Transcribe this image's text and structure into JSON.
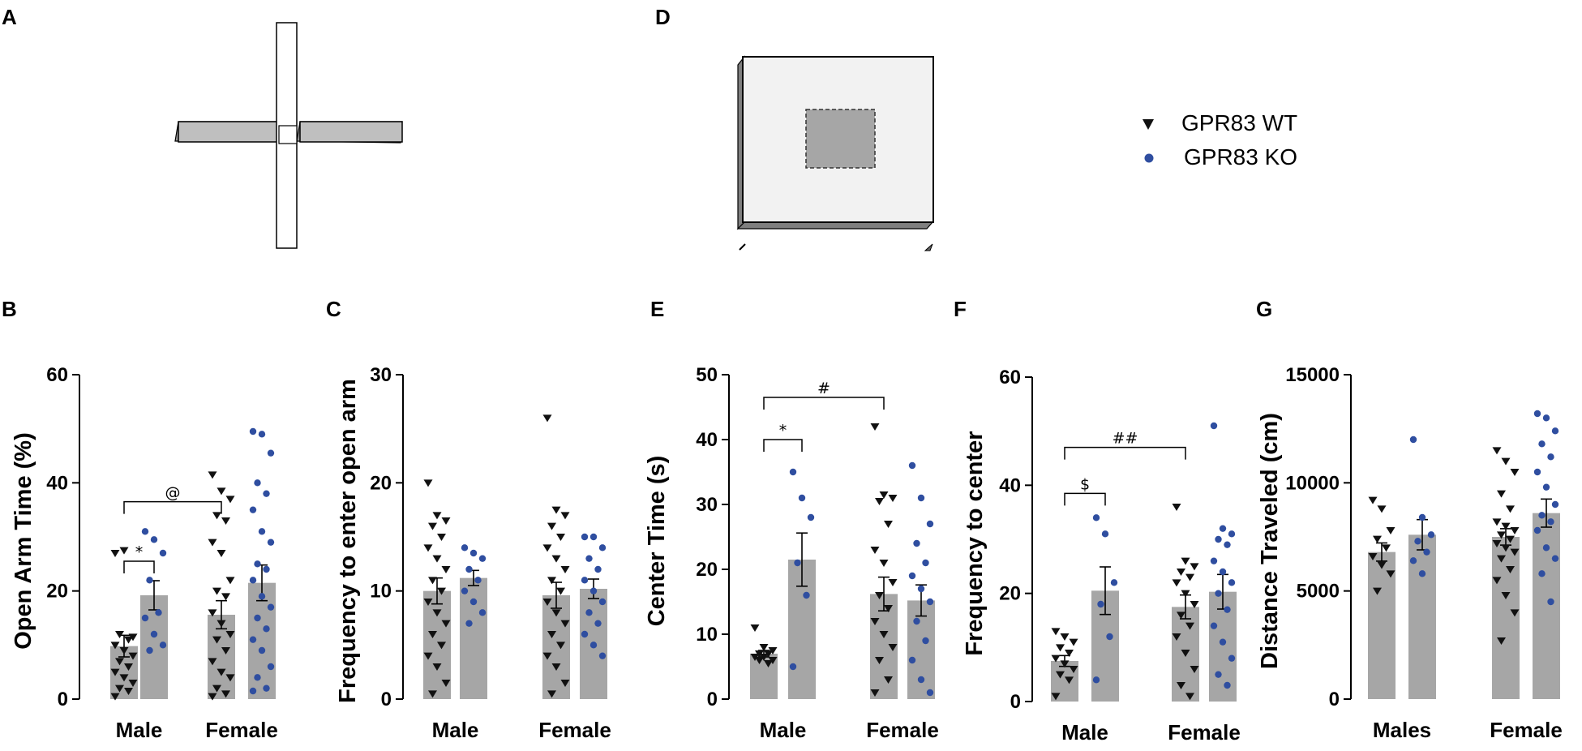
{
  "panel_labels": {
    "A": "A",
    "B": "B",
    "C": "C",
    "D": "D",
    "E": "E",
    "F": "F",
    "G": "G"
  },
  "legend": {
    "wt_label": "GPR83 WT",
    "ko_label": "GPR83 KO",
    "wt_color": "#111111",
    "ko_color": "#2f4ea0"
  },
  "colors": {
    "bar": "#a6a6a6",
    "axis": "#000000",
    "apparatus_fill": "#bfbfbf",
    "field_fill": "#f2f2f2",
    "center_fill": "#a6a6a6"
  },
  "chart_data": [
    {
      "id": "B",
      "type": "bar",
      "ylabel": "Open Arm Time (%)",
      "ylim": [
        0,
        60
      ],
      "yticks": [
        "0",
        "20",
        "40",
        "60"
      ],
      "groups": [
        "Male",
        "Female"
      ],
      "series": [
        {
          "name": "GPR83 WT",
          "means": [
            9.8,
            15.6
          ],
          "sem": [
            2.0,
            2.6
          ],
          "points": [
            [
              27,
              27.5,
              11.5,
              12,
              11,
              10,
              9,
              8,
              7,
              6,
              5,
              4,
              3,
              2,
              1.5,
              0.5
            ],
            [
              41.5,
              38.5,
              37,
              34,
              33,
              29,
              27,
              22,
              20,
              19,
              16,
              14,
              12,
              11,
              9,
              7,
              5,
              4,
              2,
              1,
              0.5
            ]
          ]
        },
        {
          "name": "GPR83 KO",
          "means": [
            19.2,
            21.5
          ],
          "sem": [
            2.7,
            3.3
          ],
          "points": [
            [
              31,
              29.5,
              27,
              22,
              16,
              15,
              12,
              10,
              9
            ],
            [
              49.5,
              49,
              45.5,
              40,
              38,
              35,
              31,
              29,
              25,
              24,
              22,
              19,
              17,
              15,
              13,
              11,
              9,
              6,
              4,
              2,
              1.5
            ]
          ]
        }
      ],
      "annotations": [
        {
          "text": "*",
          "between": "Male WT vs Male KO"
        },
        {
          "text": "@",
          "between": "Male WT vs Female WT"
        }
      ]
    },
    {
      "id": "C",
      "type": "bar",
      "ylabel": "Frequency to enter open arm",
      "ylim": [
        0,
        30
      ],
      "yticks": [
        "0",
        "10",
        "20",
        "30"
      ],
      "groups": [
        "Male",
        "Female"
      ],
      "series": [
        {
          "name": "GPR83 WT",
          "means": [
            10.0,
            9.6
          ],
          "sem": [
            1.2,
            1.2
          ],
          "points": [
            [
              20,
              17,
              16.5,
              16,
              15,
              14,
              13,
              12,
              11,
              10,
              9,
              8,
              7,
              6,
              5,
              4,
              3,
              1.5,
              0.5
            ],
            [
              26,
              17.5,
              17,
              16,
              15,
              14,
              13,
              12,
              11,
              10,
              9,
              8,
              7,
              6,
              5,
              4,
              3,
              1.5,
              0.5
            ]
          ]
        },
        {
          "name": "GPR83 KO",
          "means": [
            11.2,
            10.2
          ],
          "sem": [
            0.7,
            0.9
          ],
          "points": [
            [
              14,
              13.5,
              13,
              12,
              11,
              10,
              9,
              8,
              7
            ],
            [
              15,
              15,
              14,
              13,
              12,
              11,
              10,
              9,
              8,
              7,
              6,
              5,
              4
            ]
          ]
        }
      ],
      "annotations": []
    },
    {
      "id": "E",
      "type": "bar",
      "ylabel": "Center Time (s)",
      "ylim": [
        0,
        50
      ],
      "yticks": [
        "0",
        "10",
        "20",
        "30",
        "40",
        "50"
      ],
      "groups": [
        "Male",
        "Female"
      ],
      "series": [
        {
          "name": "GPR83 WT",
          "means": [
            7.0,
            16.2
          ],
          "sem": [
            0.5,
            2.6
          ],
          "points": [
            [
              11,
              8,
              7.5,
              7,
              7,
              6.5,
              6.5,
              6,
              6,
              5.5
            ],
            [
              42,
              31.5,
              31,
              30.5,
              27,
              23,
              21,
              18,
              16,
              14,
              12,
              10,
              8,
              6,
              3,
              1
            ]
          ]
        },
        {
          "name": "GPR83 KO",
          "means": [
            21.5,
            15.2
          ],
          "sem": [
            4.1,
            2.4
          ],
          "points": [
            [
              35,
              31,
              28,
              21,
              16,
              5
            ],
            [
              36,
              31,
              27,
              24,
              21,
              19,
              17,
              15,
              12,
              9,
              6,
              3,
              1
            ]
          ]
        }
      ],
      "annotations": [
        {
          "text": "*",
          "between": "Male WT vs Male KO"
        },
        {
          "text": "#",
          "between": "Male WT vs Female WT"
        }
      ]
    },
    {
      "id": "F",
      "type": "bar",
      "ylabel": "Frequency to center",
      "ylim": [
        0,
        60
      ],
      "yticks": [
        "0",
        "20",
        "40",
        "60"
      ],
      "groups": [
        "Male",
        "Female"
      ],
      "series": [
        {
          "name": "GPR83 WT",
          "means": [
            7.5,
            17.5
          ],
          "sem": [
            1.0,
            2.2
          ],
          "points": [
            [
              13,
              12,
              11,
              10,
              9,
              8,
              7,
              6,
              5,
              4,
              1
            ],
            [
              36,
              26,
              25,
              24,
              23,
              22,
              20,
              18,
              16,
              14,
              12,
              9,
              6,
              3,
              1
            ]
          ]
        },
        {
          "name": "GPR83 KO",
          "means": [
            20.5,
            20.3
          ],
          "sem": [
            4.4,
            3.2
          ],
          "points": [
            [
              34,
              31,
              22,
              18,
              12,
              4
            ],
            [
              51,
              32,
              31,
              30,
              29,
              26,
              24,
              22,
              20,
              17,
              14,
              11,
              8,
              5,
              3
            ]
          ]
        }
      ],
      "annotations": [
        {
          "text": "$",
          "between": "Male WT vs Male KO"
        },
        {
          "text": "##",
          "between": "Male WT vs Female WT"
        }
      ]
    },
    {
      "id": "G",
      "type": "bar",
      "ylabel": "Distance Traveled (cm)",
      "ylim": [
        0,
        15000
      ],
      "yticks": [
        "0",
        "5000",
        "10000",
        "15000"
      ],
      "groups": [
        "Males",
        "Female"
      ],
      "series": [
        {
          "name": "GPR83 WT",
          "means": [
            6800,
            7500
          ],
          "sem": [
            420,
            380
          ],
          "points": [
            [
              9200,
              8800,
              7800,
              7400,
              7000,
              6600,
              6200,
              5800,
              5000
            ],
            [
              11500,
              11000,
              10500,
              9500,
              8800,
              8200,
              8000,
              7800,
              7600,
              7400,
              7200,
              7000,
              6800,
              6500,
              6000,
              5500,
              4800,
              4000,
              2700
            ]
          ]
        },
        {
          "name": "GPR83 KO",
          "means": [
            7600,
            8600
          ],
          "sem": [
            700,
            650
          ],
          "points": [
            [
              12000,
              8400,
              7600,
              7300,
              6800,
              6400,
              5800
            ],
            [
              13200,
              13000,
              12400,
              11800,
              11200,
              10500,
              9800,
              9000,
              8500,
              8200,
              7800,
              7000,
              6500,
              5800,
              4500
            ]
          ]
        }
      ],
      "annotations": []
    }
  ]
}
